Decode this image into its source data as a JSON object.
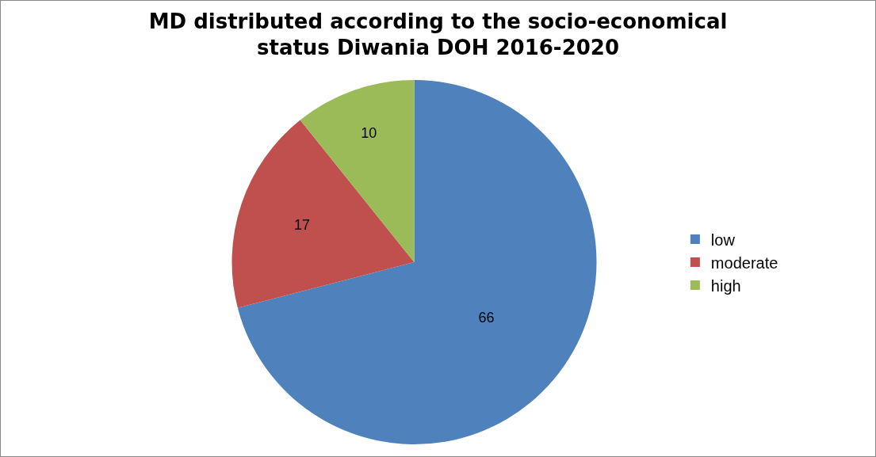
{
  "chart_data": {
    "type": "pie",
    "title": "MD distributed according to the socio-economical status Diwania DOH 2016-2020",
    "categories": [
      "low",
      "moderate",
      "high"
    ],
    "values": [
      66,
      17,
      10
    ],
    "colors": [
      "#4f81bd",
      "#c0504d",
      "#9bbb59"
    ],
    "data_labels": true,
    "legend": "right"
  }
}
